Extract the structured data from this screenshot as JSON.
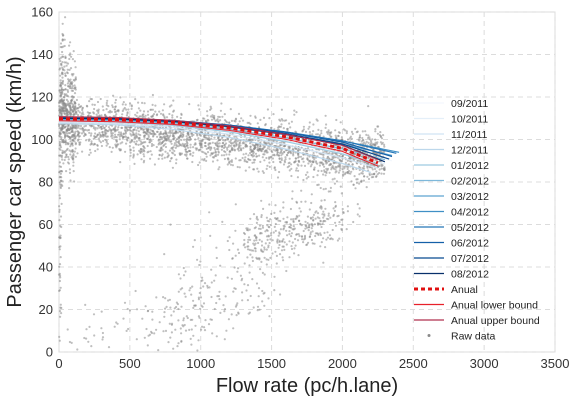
{
  "chart_data": {
    "type": "line",
    "title": "",
    "xlabel": "Flow rate (pc/h.lane)",
    "ylabel": "Passenger car speed (km/h)",
    "xlim": [
      0,
      3500
    ],
    "ylim": [
      0,
      160
    ],
    "xticks": [
      0,
      500,
      1000,
      1500,
      2000,
      2500,
      3000,
      3500
    ],
    "yticks": [
      0,
      20,
      40,
      60,
      80,
      100,
      120,
      140,
      160
    ],
    "grid": true,
    "legend_position": "right",
    "series": [
      {
        "name": "09/2011",
        "color": "#f3f8fd",
        "dash": "",
        "width": 1.2,
        "x": [
          0,
          400,
          800,
          1200,
          1600,
          2000,
          2350
        ],
        "y": [
          109,
          108.6,
          107.2,
          104.5,
          100.5,
          95.2,
          90
        ]
      },
      {
        "name": "10/2011",
        "color": "#e4eff9",
        "dash": "",
        "width": 1.2,
        "x": [
          0,
          400,
          800,
          1200,
          1600,
          2000,
          2300
        ],
        "y": [
          108.5,
          108.1,
          106.6,
          103.7,
          99.3,
          93.7,
          88.5
        ]
      },
      {
        "name": "11/2011",
        "color": "#d1e3f3",
        "dash": "",
        "width": 1.2,
        "x": [
          0,
          400,
          800,
          1200,
          1600,
          2000,
          2250
        ],
        "y": [
          108,
          107.5,
          105.8,
          102.5,
          97.6,
          91.4,
          86.5
        ]
      },
      {
        "name": "12/2011",
        "color": "#bcd7eb",
        "dash": "",
        "width": 1.2,
        "x": [
          0,
          400,
          800,
          1200,
          1600,
          2000,
          2200
        ],
        "y": [
          107.5,
          106.9,
          104.8,
          101,
          95.5,
          88.7,
          84.5
        ]
      },
      {
        "name": "01/2012",
        "color": "#9ecae1",
        "dash": "",
        "width": 1.2,
        "x": [
          0,
          400,
          800,
          1200,
          1600,
          2000,
          2250
        ],
        "y": [
          108.8,
          108.3,
          106.7,
          103.6,
          99,
          93.2,
          88
        ]
      },
      {
        "name": "02/2012",
        "color": "#7eb8da",
        "dash": "",
        "width": 1.2,
        "x": [
          0,
          400,
          800,
          1200,
          1600,
          2000,
          2300
        ],
        "y": [
          109.3,
          108.9,
          107.5,
          104.8,
          100.8,
          95.6,
          90.5
        ]
      },
      {
        "name": "03/2012",
        "color": "#5ea4d0",
        "dash": "",
        "width": 1.2,
        "x": [
          0,
          400,
          800,
          1200,
          1600,
          2000,
          2350
        ],
        "y": [
          109.6,
          109.3,
          108.1,
          105.8,
          102.3,
          97.8,
          92.5
        ]
      },
      {
        "name": "04/2012",
        "color": "#3f8fc5",
        "dash": "",
        "width": 1.2,
        "x": [
          0,
          400,
          800,
          1200,
          1600,
          2000,
          2400
        ],
        "y": [
          110,
          109.7,
          108.6,
          106.5,
          103.4,
          99.3,
          94
        ]
      },
      {
        "name": "05/2012",
        "color": "#2677b8",
        "dash": "",
        "width": 1.2,
        "x": [
          0,
          400,
          800,
          1200,
          1600,
          2000,
          2380
        ],
        "y": [
          110.2,
          109.9,
          108.9,
          106.8,
          103.6,
          99.4,
          93.5
        ]
      },
      {
        "name": "06/2012",
        "color": "#1460a8",
        "dash": "",
        "width": 1.2,
        "x": [
          0,
          400,
          800,
          1200,
          1600,
          2000,
          2350
        ],
        "y": [
          110.3,
          110,
          109,
          106.8,
          103.4,
          98.8,
          92
        ]
      },
      {
        "name": "07/2012",
        "color": "#084a91",
        "dash": "",
        "width": 1.2,
        "x": [
          0,
          400,
          800,
          1200,
          1600,
          2000,
          2330
        ],
        "y": [
          110.1,
          109.8,
          108.7,
          106.4,
          102.8,
          97.9,
          90.8
        ]
      },
      {
        "name": "08/2012",
        "color": "#08306b",
        "dash": "",
        "width": 1.2,
        "x": [
          0,
          400,
          800,
          1200,
          1600,
          2000,
          2300
        ],
        "y": [
          110,
          109.7,
          108.5,
          106.1,
          102.4,
          97.3,
          89.5
        ]
      },
      {
        "name": "Anual",
        "color": "#e01010",
        "dash": "4,3",
        "width": 3,
        "x": [
          0,
          400,
          800,
          1200,
          1600,
          2000,
          2250
        ],
        "y": [
          109.8,
          109.4,
          108.1,
          105.4,
          101.3,
          95.8,
          89
        ]
      },
      {
        "name": "Anual lower bound",
        "color": "#e8202a",
        "dash": "",
        "width": 1,
        "x": [
          0,
          400,
          800,
          1200,
          1600,
          2000,
          2250
        ],
        "y": [
          108.8,
          108.4,
          107.1,
          104.3,
          100.1,
          94.4,
          87.5
        ]
      },
      {
        "name": "Anual upper bound",
        "color": "#b0304f",
        "dash": "",
        "width": 1,
        "x": [
          0,
          400,
          800,
          1200,
          1600,
          2000,
          2250
        ],
        "y": [
          110.8,
          110.4,
          109.1,
          106.5,
          102.5,
          97.2,
          90.5
        ]
      }
    ],
    "scatter": {
      "name": "Raw data",
      "color": "#8a8a8a",
      "description_clusters": [
        {
          "x_range": [
            0,
            2300
          ],
          "center_y_start": 108,
          "center_y_end": 92,
          "spread": 6,
          "count": 2600
        },
        {
          "x_range": [
            0,
            120
          ],
          "center_y_start": 118,
          "center_y_end": 112,
          "spread": 14,
          "count": 350
        },
        {
          "x_range": [
            1300,
            2000
          ],
          "center_y_start": 52,
          "center_y_end": 62,
          "spread": 6,
          "count": 260
        },
        {
          "x_range": [
            700,
            2200
          ],
          "center_y_start": 15,
          "center_y_end": 85,
          "spread": 14,
          "count": 260
        },
        {
          "x_range": [
            0,
            1500
          ],
          "center_y_start": 5,
          "center_y_end": 25,
          "spread": 8,
          "count": 120
        },
        {
          "x_range": [
            0,
            30
          ],
          "center_y_start": 30,
          "center_y_end": 150,
          "spread": 30,
          "count": 120
        }
      ]
    }
  }
}
